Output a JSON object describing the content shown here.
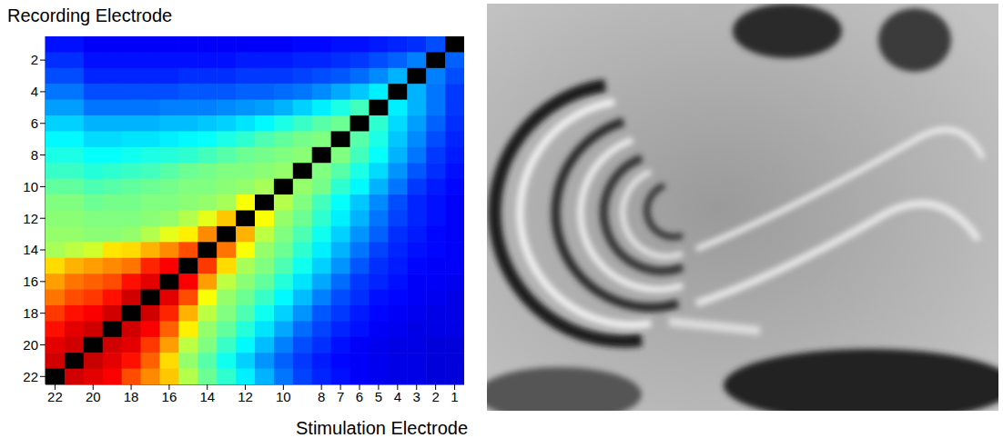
{
  "chart_data": {
    "type": "heatmap",
    "x_label": "Stimulation Electrode",
    "y_label": "Recording Electrode",
    "x_categories": [
      22,
      null,
      20,
      null,
      18,
      null,
      16,
      null,
      14,
      null,
      12,
      null,
      10,
      null,
      8,
      7,
      6,
      5,
      4,
      3,
      2,
      1
    ],
    "y_categories": [
      null,
      2,
      null,
      4,
      null,
      6,
      null,
      8,
      null,
      10,
      null,
      12,
      null,
      14,
      null,
      16,
      null,
      18,
      null,
      20,
      null,
      22
    ],
    "color_range": [
      0,
      100
    ],
    "cells": [
      [
        14,
        14,
        12,
        12,
        12,
        12,
        12,
        12,
        12,
        12,
        12,
        12,
        12,
        13,
        13,
        14,
        14,
        15,
        16,
        17,
        20,
        null
      ],
      [
        17,
        17,
        14,
        14,
        14,
        14,
        14,
        14,
        14,
        14,
        15,
        15,
        15,
        16,
        16,
        17,
        18,
        20,
        22,
        25,
        null,
        22
      ],
      [
        20,
        20,
        16,
        16,
        16,
        16,
        16,
        17,
        17,
        17,
        18,
        18,
        18,
        19,
        20,
        21,
        23,
        26,
        30,
        null,
        25,
        20
      ],
      [
        24,
        24,
        20,
        20,
        20,
        20,
        20,
        21,
        21,
        21,
        22,
        22,
        23,
        24,
        26,
        29,
        32,
        36,
        null,
        30,
        24,
        18
      ],
      [
        28,
        28,
        24,
        24,
        24,
        24,
        25,
        25,
        25,
        26,
        27,
        28,
        30,
        33,
        36,
        40,
        44,
        null,
        36,
        30,
        24,
        18
      ],
      [
        33,
        33,
        30,
        30,
        30,
        30,
        31,
        31,
        32,
        33,
        35,
        37,
        40,
        43,
        46,
        48,
        null,
        42,
        34,
        28,
        22,
        17
      ],
      [
        37,
        37,
        34,
        34,
        35,
        35,
        36,
        37,
        38,
        40,
        42,
        45,
        47,
        49,
        50,
        null,
        46,
        40,
        32,
        26,
        20,
        16
      ],
      [
        40,
        40,
        38,
        38,
        39,
        40,
        41,
        42,
        44,
        46,
        48,
        49,
        50,
        51,
        null,
        50,
        44,
        38,
        30,
        24,
        18,
        15
      ],
      [
        43,
        43,
        41,
        42,
        43,
        44,
        46,
        48,
        49,
        50,
        50,
        51,
        52,
        null,
        50,
        46,
        40,
        34,
        27,
        21,
        17,
        14
      ],
      [
        47,
        47,
        45,
        46,
        47,
        48,
        49,
        50,
        50,
        51,
        52,
        54,
        null,
        52,
        49,
        42,
        37,
        30,
        24,
        18,
        15,
        13
      ],
      [
        50,
        50,
        48,
        49,
        49,
        50,
        50,
        51,
        52,
        54,
        62,
        null,
        55,
        50,
        44,
        38,
        32,
        26,
        20,
        16,
        14,
        12
      ],
      [
        51,
        51,
        50,
        50,
        50,
        51,
        52,
        55,
        60,
        68,
        null,
        62,
        52,
        48,
        42,
        36,
        30,
        24,
        19,
        16,
        14,
        12
      ],
      [
        52,
        52,
        51,
        51,
        52,
        55,
        60,
        64,
        74,
        null,
        70,
        56,
        50,
        45,
        39,
        33,
        27,
        22,
        17,
        15,
        13,
        12
      ],
      [
        54,
        56,
        58,
        65,
        66,
        70,
        74,
        80,
        null,
        76,
        62,
        52,
        48,
        42,
        36,
        30,
        24,
        19,
        16,
        14,
        13,
        12
      ],
      [
        66,
        70,
        72,
        74,
        76,
        84,
        88,
        null,
        82,
        66,
        54,
        50,
        45,
        39,
        33,
        27,
        21,
        17,
        15,
        13,
        12,
        12
      ],
      [
        72,
        76,
        78,
        80,
        86,
        90,
        null,
        88,
        72,
        56,
        51,
        47,
        41,
        35,
        29,
        23,
        18,
        16,
        14,
        12,
        12,
        11
      ],
      [
        76,
        80,
        82,
        86,
        92,
        null,
        90,
        80,
        62,
        52,
        48,
        43,
        37,
        31,
        25,
        20,
        17,
        14,
        13,
        12,
        11,
        10
      ],
      [
        82,
        86,
        88,
        92,
        null,
        92,
        84,
        70,
        56,
        50,
        45,
        39,
        33,
        27,
        21,
        18,
        15,
        13,
        12,
        11,
        10,
        10
      ],
      [
        86,
        90,
        92,
        null,
        92,
        88,
        78,
        64,
        52,
        47,
        41,
        35,
        29,
        23,
        19,
        16,
        14,
        12,
        11,
        10,
        10,
        10
      ],
      [
        90,
        92,
        null,
        92,
        90,
        82,
        72,
        56,
        50,
        43,
        37,
        31,
        25,
        20,
        17,
        14,
        12,
        11,
        10,
        10,
        9,
        9
      ],
      [
        92,
        null,
        93,
        90,
        86,
        78,
        66,
        52,
        46,
        39,
        33,
        27,
        22,
        18,
        15,
        13,
        12,
        11,
        10,
        10,
        9,
        9
      ],
      [
        null,
        92,
        90,
        88,
        80,
        74,
        68,
        55,
        48,
        42,
        36,
        30,
        24,
        19,
        16,
        14,
        12,
        11,
        10,
        10,
        9,
        9
      ]
    ]
  }
}
